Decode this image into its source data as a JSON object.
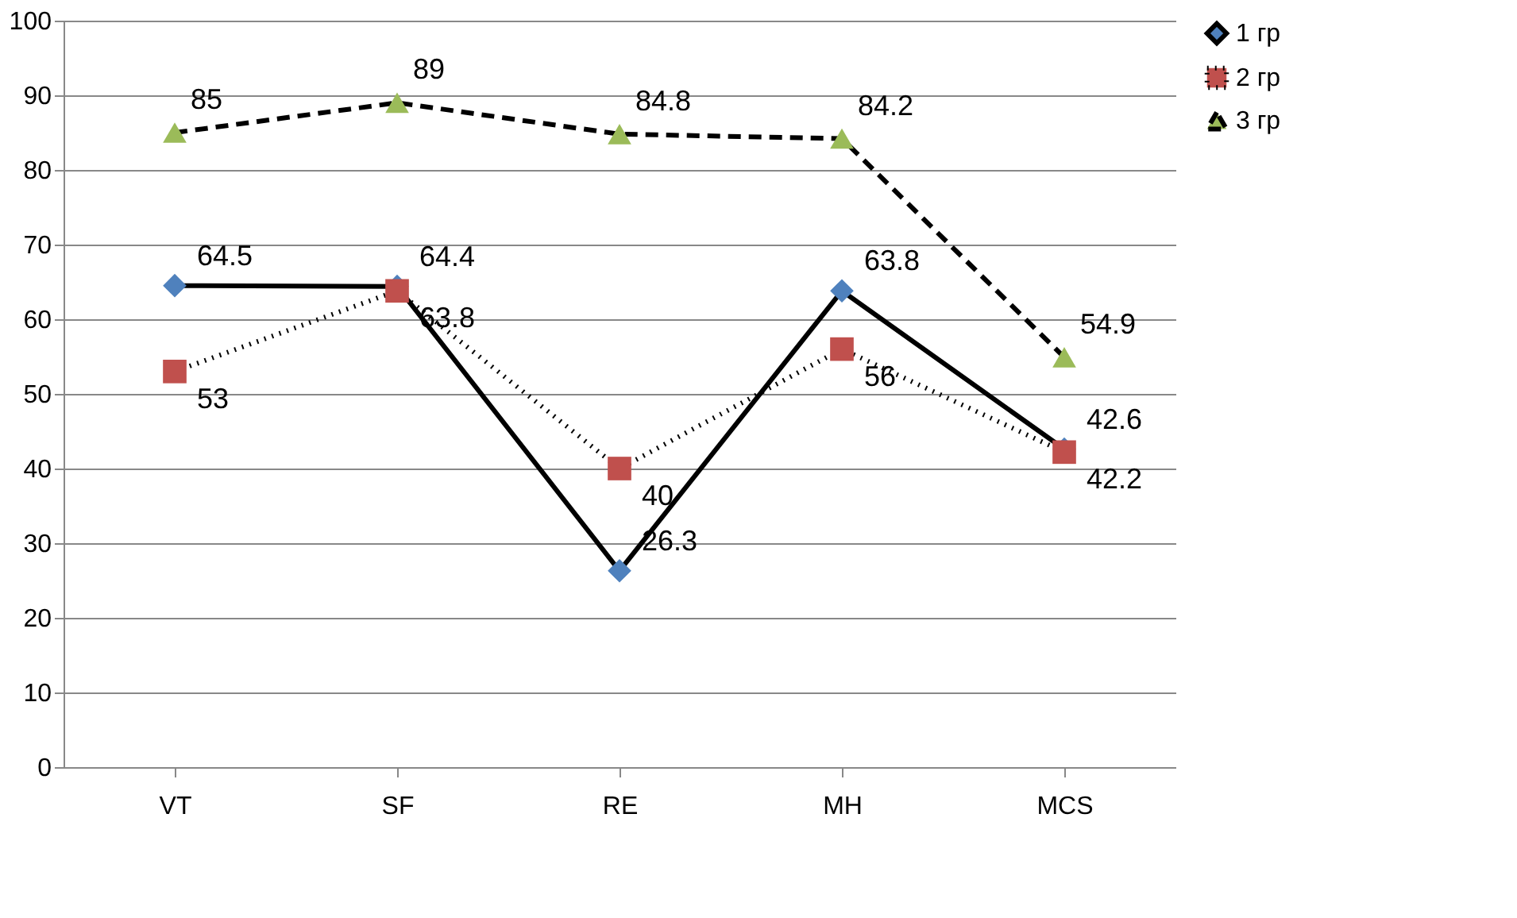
{
  "chart_data": {
    "type": "line",
    "categories": [
      "VT",
      "SF",
      "RE",
      "MH",
      "MCS"
    ],
    "series": [
      {
        "name": "1 гр",
        "color": "#4f81bd",
        "marker": "diamond",
        "line_style": "solid",
        "values": [
          64.5,
          64.4,
          26.3,
          63.8,
          42.6
        ]
      },
      {
        "name": "2 гр",
        "color": "#c0504d",
        "marker": "square",
        "line_style": "dotted",
        "values": [
          53,
          63.8,
          40,
          56,
          42.2
        ]
      },
      {
        "name": "3 гр",
        "color": "#9bbb59",
        "marker": "triangle",
        "line_style": "dashed",
        "values": [
          85,
          89,
          84.8,
          84.2,
          54.9
        ]
      }
    ],
    "ylim": [
      0,
      100
    ],
    "yticks": [
      0,
      10,
      20,
      30,
      40,
      50,
      60,
      70,
      80,
      90,
      100
    ],
    "grid": "y",
    "legend": "right",
    "data_labels": true
  }
}
